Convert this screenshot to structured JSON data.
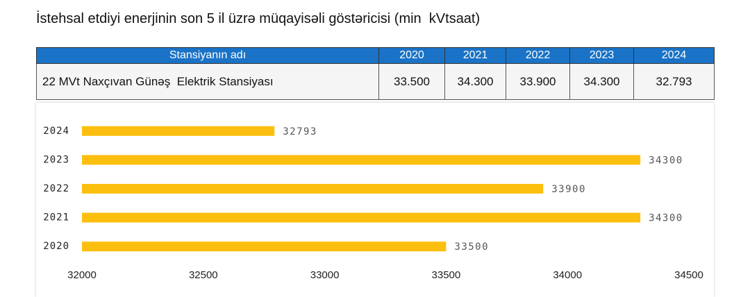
{
  "title": "İstehsal etdiyi enerjinin son 5 il üzrə müqayisəli göstəricisi (min  kVtsaat)",
  "table": {
    "header": [
      "Stansiyanın adı",
      "2020",
      "2021",
      "2022",
      "2023",
      "2024"
    ],
    "rows": [
      [
        "22 MVt Naxçıvan Günəş  Elektrik Stansiyası",
        "33.500",
        "34.300",
        "33.900",
        "34.300",
        "32.793"
      ]
    ]
  },
  "chart_data": {
    "type": "bar",
    "orientation": "horizontal",
    "categories": [
      "2024",
      "2023",
      "2022",
      "2021",
      "2020"
    ],
    "values": [
      32793,
      34300,
      33900,
      34300,
      33500
    ],
    "color": "#fcbf0f",
    "xlim": [
      32000,
      34500
    ],
    "xticks": [
      32000,
      32500,
      33000,
      33500,
      34000,
      34500
    ],
    "grid": false
  }
}
